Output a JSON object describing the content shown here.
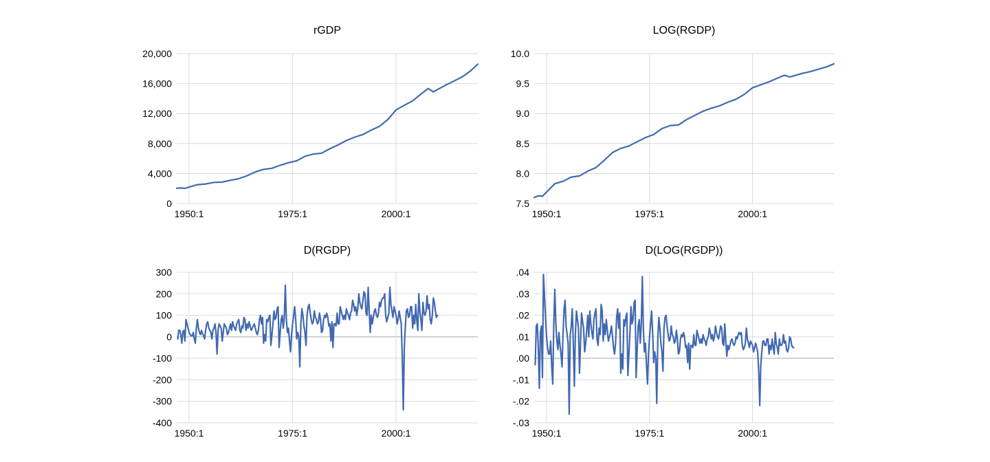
{
  "colors": {
    "series": "#4169b0",
    "grid": "#d9d9d9",
    "zero_line": "#a6a6a6",
    "background": "#ffffff"
  },
  "chart_data": [
    {
      "type": "line",
      "title": "rGDP",
      "xlabel": "",
      "ylabel": "",
      "grid": true,
      "x_range": [
        1947.0,
        2019.75
      ],
      "ylim": [
        0,
        20000
      ],
      "y_ticks": [
        0,
        4000,
        8000,
        12000,
        16000,
        20000
      ],
      "y_tick_labels": [
        "0",
        "4,000",
        "8,000",
        "12,000",
        "16,000",
        "20,000"
      ],
      "x_ticks": [
        1950,
        1975,
        2000
      ],
      "x_tick_labels": [
        "1950:1",
        "1975:1",
        "2000:1"
      ],
      "series": [
        {
          "x": [
            1947,
            1948,
            1949,
            1950,
            1952,
            1954,
            1956,
            1958,
            1960,
            1962,
            1964,
            1966,
            1968,
            1970,
            1972,
            1974,
            1976,
            1978,
            1980,
            1982,
            1984,
            1986,
            1988,
            1990,
            1992,
            1994,
            1996,
            1998,
            2000,
            2002,
            2004,
            2006,
            2007.75,
            2009,
            2010,
            2012,
            2014,
            2016,
            2018,
            2019.75
          ],
          "y": [
            2030,
            2070,
            2020,
            2190,
            2510,
            2610,
            2820,
            2860,
            3100,
            3310,
            3710,
            4210,
            4550,
            4700,
            5100,
            5440,
            5700,
            6300,
            6600,
            6720,
            7300,
            7820,
            8400,
            8850,
            9200,
            9800,
            10300,
            11200,
            12500,
            13100,
            13700,
            14600,
            15350,
            14900,
            15200,
            15800,
            16350,
            16900,
            17700,
            18600
          ]
        }
      ]
    },
    {
      "type": "line",
      "title": "LOG(RGDP)",
      "xlabel": "",
      "ylabel": "",
      "grid": true,
      "x_range": [
        1947.0,
        2019.75
      ],
      "ylim": [
        7.5,
        10.0
      ],
      "y_ticks": [
        7.5,
        8.0,
        8.5,
        9.0,
        9.5,
        10.0
      ],
      "y_tick_labels": [
        "7.5",
        "8.0",
        "8.5",
        "9.0",
        "9.5",
        "10.0"
      ],
      "x_ticks": [
        1950,
        1975,
        2000
      ],
      "x_tick_labels": [
        "1950:1",
        "1975:1",
        "2000:1"
      ],
      "series": [
        {
          "x": [
            1947,
            1948,
            1949,
            1950,
            1952,
            1954,
            1956,
            1958,
            1960,
            1962,
            1964,
            1966,
            1968,
            1970,
            1972,
            1974,
            1976,
            1978,
            1980,
            1982,
            1984,
            1986,
            1988,
            1990,
            1992,
            1994,
            1996,
            1998,
            2000,
            2002,
            2004,
            2006,
            2007.75,
            2009,
            2010,
            2012,
            2014,
            2016,
            2018,
            2019.75
          ],
          "y": [
            7.6,
            7.63,
            7.62,
            7.69,
            7.83,
            7.87,
            7.94,
            7.96,
            8.04,
            8.1,
            8.22,
            8.35,
            8.42,
            8.46,
            8.53,
            8.6,
            8.65,
            8.75,
            8.8,
            8.81,
            8.9,
            8.97,
            9.04,
            9.09,
            9.13,
            9.19,
            9.24,
            9.32,
            9.43,
            9.48,
            9.53,
            9.59,
            9.64,
            9.61,
            9.63,
            9.67,
            9.7,
            9.74,
            9.78,
            9.83
          ]
        }
      ]
    },
    {
      "type": "line",
      "title": "D(RGDP)",
      "xlabel": "",
      "ylabel": "",
      "grid": true,
      "x_range": [
        1947.0,
        2019.75
      ],
      "ylim": [
        -400,
        300
      ],
      "y_ticks": [
        -400,
        -300,
        -200,
        -100,
        0,
        100,
        200,
        300
      ],
      "y_tick_labels": [
        "-400",
        "-300",
        "-200",
        "-100",
        "0",
        "100",
        "200",
        "300"
      ],
      "x_ticks": [
        1950,
        1975,
        2000
      ],
      "x_tick_labels": [
        "1950:1",
        "1975:1",
        "2000:1"
      ],
      "series": [
        {
          "x_start": 1947.25,
          "x_step": 0.25,
          "y": [
            -10,
            30,
            30,
            10,
            -30,
            25,
            30,
            -20,
            80,
            60,
            40,
            20,
            10,
            5,
            5,
            20,
            -10,
            -30,
            40,
            80,
            40,
            20,
            10,
            30,
            15,
            5,
            -10,
            30,
            60,
            70,
            40,
            30,
            20,
            -10,
            30,
            40,
            60,
            20,
            -80,
            30,
            60,
            50,
            40,
            -20,
            20,
            60,
            50,
            40,
            10,
            20,
            40,
            60,
            30,
            70,
            50,
            40,
            30,
            60,
            70,
            80,
            30,
            20,
            50,
            40,
            90,
            80,
            30,
            60,
            40,
            70,
            50,
            30,
            40,
            50,
            60,
            40,
            20,
            10,
            30,
            80,
            100,
            60,
            90,
            -30,
            10,
            -20,
            80,
            70,
            90,
            100,
            -40,
            10,
            60,
            120,
            80,
            90,
            130,
            140,
            -50,
            20,
            80,
            100,
            40,
            90,
            240,
            80,
            20,
            40,
            -20,
            -70,
            10,
            60,
            100,
            140,
            80,
            -10,
            20,
            0,
            -140,
            60,
            130,
            100,
            50,
            20,
            -40,
            100,
            140,
            150,
            110,
            80,
            60,
            70,
            120,
            90,
            80,
            60,
            70,
            110,
            80,
            20,
            30,
            80,
            100,
            90,
            110,
            90,
            50,
            60,
            -20,
            70,
            -50,
            60,
            60,
            50,
            110,
            60,
            60,
            140,
            120,
            100,
            80,
            100,
            80,
            130,
            110,
            100,
            80,
            110,
            120,
            170,
            150,
            120,
            140,
            100,
            130,
            200,
            160,
            140,
            130,
            170,
            210,
            200,
            110,
            100,
            230,
            120,
            20,
            100,
            60,
            90,
            120,
            130,
            100,
            90,
            110,
            160,
            140,
            170,
            180,
            180,
            200,
            100,
            70,
            90,
            110,
            230,
            150,
            120,
            90,
            140,
            120,
            100,
            60,
            80,
            120,
            90,
            60,
            -90,
            -340,
            -50,
            50,
            120,
            130,
            90,
            100,
            140,
            140,
            40,
            100,
            60,
            150,
            80,
            30,
            200,
            120,
            80,
            30,
            160,
            110,
            100,
            120,
            190,
            130,
            150,
            80,
            60,
            100,
            180,
            160,
            120,
            90,
            100
          ]
        }
      ]
    },
    {
      "type": "line",
      "title": "D(LOG(RGDP))",
      "xlabel": "",
      "ylabel": "",
      "grid": true,
      "x_range": [
        1947.0,
        2019.75
      ],
      "ylim": [
        -0.03,
        0.04
      ],
      "y_ticks": [
        -0.03,
        -0.02,
        -0.01,
        0.0,
        0.01,
        0.02,
        0.03,
        0.04
      ],
      "y_tick_labels": [
        "-.03",
        "-.02",
        "-.01",
        ".00",
        ".01",
        ".02",
        ".03",
        ".04"
      ],
      "x_ticks": [
        1950,
        1975,
        2000
      ],
      "x_tick_labels": [
        "1950:1",
        "1975:1",
        "2000:1"
      ],
      "series": [
        {
          "x_start": 1947.25,
          "x_step": 0.25,
          "y": [
            -0.003,
            0.015,
            0.016,
            0.005,
            -0.014,
            0.012,
            0.015,
            -0.009,
            0.039,
            0.029,
            0.019,
            0.01,
            0.005,
            0.002,
            0.002,
            0.008,
            -0.004,
            -0.012,
            0.016,
            0.032,
            0.016,
            0.008,
            0.004,
            0.012,
            0.006,
            0.002,
            -0.004,
            0.012,
            0.023,
            0.027,
            0.015,
            0.011,
            0.007,
            -0.026,
            0.011,
            0.015,
            0.023,
            0.007,
            -0.013,
            0.011,
            0.022,
            0.018,
            0.014,
            -0.007,
            0.007,
            0.021,
            0.017,
            0.014,
            0.003,
            0.007,
            0.013,
            0.02,
            0.01,
            0.022,
            0.016,
            0.012,
            0.009,
            0.018,
            0.021,
            0.023,
            0.009,
            0.006,
            0.014,
            0.011,
            0.025,
            0.022,
            0.008,
            0.016,
            0.011,
            0.018,
            0.013,
            0.008,
            0.01,
            0.012,
            0.015,
            0.01,
            0.005,
            0.002,
            0.007,
            0.019,
            0.023,
            0.014,
            0.021,
            -0.007,
            0.002,
            -0.005,
            0.018,
            0.015,
            0.019,
            0.021,
            -0.008,
            0.002,
            0.012,
            0.024,
            0.016,
            0.018,
            0.026,
            0.027,
            -0.009,
            0.004,
            0.015,
            0.018,
            0.007,
            0.016,
            0.038,
            0.014,
            0.003,
            0.007,
            -0.003,
            -0.012,
            0.002,
            0.01,
            0.016,
            0.022,
            0.012,
            -0.002,
            0.003,
            0.0,
            -0.021,
            0.009,
            0.019,
            0.014,
            0.007,
            0.003,
            -0.006,
            0.014,
            0.019,
            0.02,
            0.015,
            0.011,
            0.008,
            0.009,
            0.015,
            0.011,
            0.01,
            0.007,
            0.008,
            0.013,
            0.009,
            0.002,
            0.003,
            0.009,
            0.011,
            0.01,
            0.012,
            0.01,
            0.005,
            0.006,
            -0.002,
            0.007,
            -0.005,
            0.006,
            0.006,
            0.005,
            0.011,
            0.006,
            0.006,
            0.013,
            0.011,
            0.009,
            0.007,
            0.009,
            0.007,
            0.011,
            0.009,
            0.008,
            0.006,
            0.009,
            0.01,
            0.014,
            0.012,
            0.009,
            0.011,
            0.008,
            0.01,
            0.015,
            0.012,
            0.01,
            0.009,
            0.012,
            0.015,
            0.014,
            0.007,
            0.006,
            0.016,
            0.008,
            0.001,
            0.006,
            0.004,
            0.006,
            0.008,
            0.009,
            0.007,
            0.006,
            0.007,
            0.01,
            0.009,
            0.011,
            0.012,
            0.011,
            0.012,
            0.006,
            0.004,
            0.005,
            0.007,
            0.014,
            0.009,
            0.007,
            0.005,
            0.008,
            0.007,
            0.006,
            0.003,
            0.005,
            0.007,
            0.005,
            0.003,
            -0.006,
            -0.022,
            -0.003,
            0.003,
            0.008,
            0.008,
            0.006,
            0.006,
            0.009,
            0.009,
            0.002,
            0.006,
            0.004,
            0.009,
            0.005,
            0.002,
            0.012,
            0.007,
            0.005,
            0.002,
            0.009,
            0.006,
            0.006,
            0.007,
            0.011,
            0.007,
            0.008,
            0.004,
            0.003,
            0.005,
            0.01,
            0.009,
            0.006,
            0.005,
            0.005
          ]
        }
      ]
    }
  ]
}
